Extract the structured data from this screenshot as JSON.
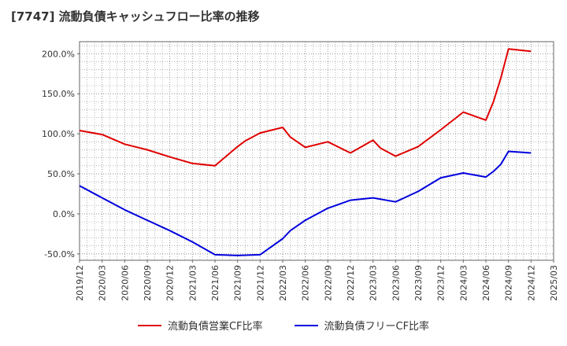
{
  "title": "[7747]  流動負債キャッシュフロー比率の推移",
  "colors": {
    "red": "#e00000",
    "blue": "#0000dd",
    "grid": "#888888",
    "frame": "#666666"
  },
  "chart_data": {
    "type": "line",
    "title": "[7747]  流動負債キャッシュフロー比率の推移",
    "ylim": [
      -58,
      215
    ],
    "yticks": [
      200,
      150,
      100,
      50,
      0,
      -50
    ],
    "ytick_labels": [
      "200.0%",
      "150.0%",
      "100.0%",
      "50.0%",
      "0.0%",
      "-50.0%"
    ],
    "xticks": [
      "2019/12",
      "2020/03",
      "2020/06",
      "2020/09",
      "2020/12",
      "2021/03",
      "2021/06",
      "2021/09",
      "2021/12",
      "2022/03",
      "2022/06",
      "2022/09",
      "2022/12",
      "2023/03",
      "2023/06",
      "2023/09",
      "2023/12",
      "2024/03",
      "2024/06",
      "2024/09",
      "2024/12",
      "2025/03"
    ],
    "grid": true,
    "legend_position": "bottom",
    "series": [
      {
        "name": "流動負債営業CF比率",
        "color": "#e00000",
        "x": [
          "2019/12",
          "2020/03",
          "2020/06",
          "2020/09",
          "2020/12",
          "2021/03",
          "2021/06",
          "2021/09",
          "2021/10",
          "2021/12",
          "2022/03",
          "2022/04",
          "2022/06",
          "2022/09",
          "2022/12",
          "2023/03",
          "2023/04",
          "2023/06",
          "2023/09",
          "2023/12",
          "2024/03",
          "2024/06",
          "2024/07",
          "2024/08",
          "2024/09",
          "2024/12"
        ],
        "values": [
          104,
          99,
          87,
          80,
          71,
          63,
          60,
          84,
          91,
          101,
          108,
          96,
          83,
          90,
          76,
          92,
          82,
          72,
          84,
          105,
          127,
          117,
          140,
          170,
          206,
          203
        ]
      },
      {
        "name": "流動負債フリーCF比率",
        "color": "#0000dd",
        "x": [
          "2019/12",
          "2020/03",
          "2020/06",
          "2020/09",
          "2020/12",
          "2021/03",
          "2021/06",
          "2021/09",
          "2021/12",
          "2022/03",
          "2022/04",
          "2022/06",
          "2022/09",
          "2022/12",
          "2023/03",
          "2023/06",
          "2023/09",
          "2023/12",
          "2024/03",
          "2024/06",
          "2024/07",
          "2024/08",
          "2024/09",
          "2024/12"
        ],
        "values": [
          35,
          20,
          5,
          -8,
          -21,
          -35,
          -51,
          -52,
          -51,
          -31,
          -21,
          -8,
          7,
          17,
          20,
          15,
          28,
          45,
          51,
          46,
          53,
          62,
          78,
          76
        ]
      }
    ]
  }
}
